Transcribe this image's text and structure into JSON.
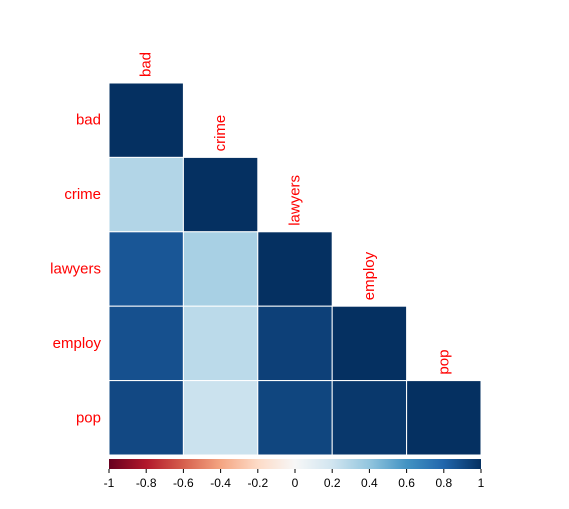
{
  "chart_data": {
    "type": "heatmap",
    "subtype": "correlation-lower-triangle",
    "variables": [
      "bad",
      "crime",
      "lawyers",
      "employ",
      "pop"
    ],
    "matrix": [
      [
        1.0
      ],
      [
        0.3,
        1.0
      ],
      [
        0.86,
        0.33,
        1.0
      ],
      [
        0.88,
        0.27,
        0.94,
        1.0
      ],
      [
        0.91,
        0.22,
        0.92,
        0.97,
        1.0
      ]
    ],
    "colorbar": {
      "range": [
        -1,
        1
      ],
      "ticks": [
        "-1",
        "-0.8",
        "-0.6",
        "-0.4",
        "-0.2",
        "0",
        "0.2",
        "0.4",
        "0.6",
        "0.8",
        "1"
      ],
      "palette": [
        "#67001f",
        "#b2182b",
        "#d6604d",
        "#f4a582",
        "#fddbc7",
        "#f7f7f7",
        "#d1e5f0",
        "#92c5de",
        "#4393c3",
        "#2166ac",
        "#053061"
      ],
      "placement": "bottom"
    },
    "label_color": "#ff0000",
    "grid_color": "#ffffff"
  }
}
